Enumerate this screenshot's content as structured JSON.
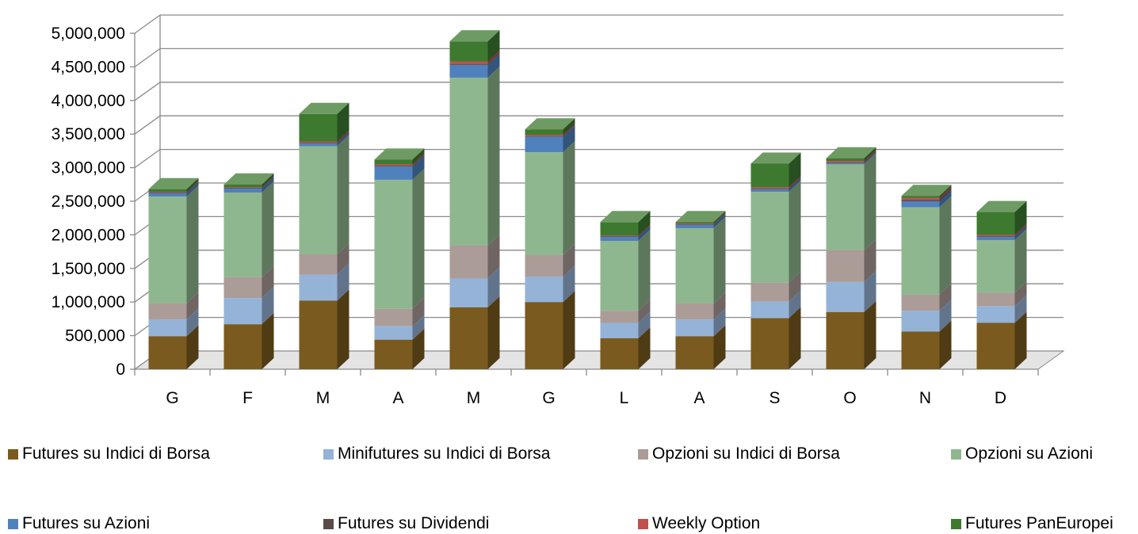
{
  "chart_data": {
    "type": "bar",
    "stacked": true,
    "three_d": true,
    "categories": [
      "G",
      "F",
      "M",
      "A",
      "M",
      "G",
      "L",
      "A",
      "S",
      "O",
      "N",
      "D"
    ],
    "ylim": [
      0,
      5000000
    ],
    "yticks": [
      0,
      500000,
      1000000,
      1500000,
      2000000,
      2500000,
      3000000,
      3500000,
      4000000,
      4500000,
      5000000
    ],
    "ytick_labels": [
      "0",
      "500,000",
      "1,000,000",
      "1,500,000",
      "2,000,000",
      "2,500,000",
      "3,000,000",
      "3,500,000",
      "4,000,000",
      "4,500,000",
      "5,000,000"
    ],
    "grid": true,
    "legend_position": "bottom",
    "series": [
      {
        "name": "Futures su Indici di Borsa",
        "color": "#7a5a1e",
        "values": [
          490000,
          670000,
          1020000,
          440000,
          920000,
          1000000,
          460000,
          490000,
          760000,
          850000,
          560000,
          690000
        ]
      },
      {
        "name": "Minifutures su Indici di Borsa",
        "color": "#95b3d7",
        "values": [
          250000,
          390000,
          390000,
          200000,
          430000,
          380000,
          230000,
          250000,
          250000,
          450000,
          310000,
          250000
        ]
      },
      {
        "name": "Opzioni su Indici di Borsa",
        "color": "#ab9c98",
        "values": [
          240000,
          310000,
          300000,
          260000,
          490000,
          320000,
          180000,
          240000,
          280000,
          470000,
          240000,
          200000
        ]
      },
      {
        "name": "Opzioni su Azioni",
        "color": "#8fb78f",
        "values": [
          1590000,
          1260000,
          1610000,
          1920000,
          2500000,
          1530000,
          1040000,
          1120000,
          1350000,
          1280000,
          1300000,
          780000
        ]
      },
      {
        "name": "Futures su Azioni",
        "color": "#4f81bd",
        "values": [
          50000,
          60000,
          40000,
          200000,
          190000,
          230000,
          60000,
          50000,
          40000,
          20000,
          90000,
          50000
        ]
      },
      {
        "name": "Futures su Dividendi",
        "color": "#5c4a4a",
        "values": [
          10000,
          10000,
          10000,
          10000,
          10000,
          10000,
          10000,
          10000,
          10000,
          10000,
          20000,
          10000
        ]
      },
      {
        "name": "Weekly Option",
        "color": "#c0504d",
        "values": [
          10000,
          10000,
          20000,
          20000,
          40000,
          20000,
          10000,
          10000,
          20000,
          20000,
          30000,
          20000
        ]
      },
      {
        "name": "Futures PanEuropei",
        "color": "#3d7a30",
        "values": [
          40000,
          40000,
          410000,
          70000,
          300000,
          80000,
          200000,
          20000,
          350000,
          40000,
          30000,
          340000
        ]
      }
    ]
  }
}
